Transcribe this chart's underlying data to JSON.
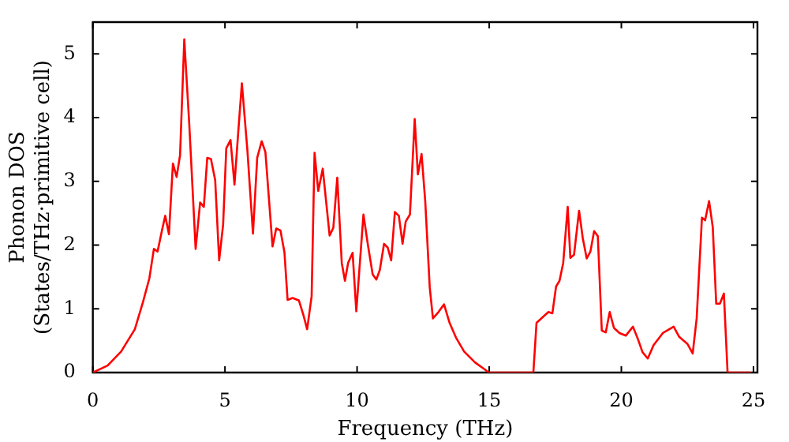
{
  "chart_data": {
    "type": "line",
    "xlabel": "Frequency (THz)",
    "ylabel": "Phonon DOS\n(States/THz·primitive cell)",
    "xlim": [
      0,
      25.15
    ],
    "ylim": [
      0,
      5.5
    ],
    "xticks": [
      0,
      5,
      10,
      15,
      20,
      25
    ],
    "yticks": [
      0,
      1,
      2,
      3,
      4,
      5
    ],
    "grid": false,
    "legend": false,
    "marker": "none",
    "line_style": "solid",
    "series": [
      {
        "color": "#ff0000",
        "x": [
          0,
          0.56,
          1.07,
          1.59,
          1.9,
          2.14,
          2.31,
          2.45,
          2.62,
          2.74,
          2.88,
          3.03,
          3.17,
          3.3,
          3.46,
          3.65,
          3.89,
          4.06,
          4.2,
          4.33,
          4.47,
          4.63,
          4.78,
          4.93,
          5.05,
          5.21,
          5.36,
          5.5,
          5.64,
          5.85,
          6.06,
          6.22,
          6.39,
          6.53,
          6.8,
          6.94,
          7.1,
          7.25,
          7.37,
          7.56,
          7.8,
          7.97,
          8.11,
          8.28,
          8.39,
          8.53,
          8.7,
          8.96,
          9.1,
          9.25,
          9.42,
          9.54,
          9.66,
          9.83,
          9.97,
          10.24,
          10.41,
          10.59,
          10.73,
          10.86,
          11.02,
          11.16,
          11.29,
          11.43,
          11.58,
          11.72,
          11.84,
          12.0,
          12.18,
          12.3,
          12.44,
          12.58,
          12.75,
          12.87,
          13.08,
          13.29,
          13.5,
          13.74,
          14.05,
          14.46,
          14.83,
          14.98,
          16.67,
          16.79,
          17.24,
          17.39,
          17.53,
          17.66,
          17.8,
          17.97,
          18.07,
          18.21,
          18.4,
          18.54,
          18.69,
          18.83,
          18.97,
          19.11,
          19.26,
          19.41,
          19.56,
          19.72,
          19.93,
          20.17,
          20.44,
          20.64,
          20.8,
          21.0,
          21.22,
          21.57,
          21.98,
          22.19,
          22.5,
          22.7,
          22.85,
          23.05,
          23.17,
          23.32,
          23.46,
          23.59,
          23.73,
          23.88,
          24.02,
          24.9
        ],
        "values": [
          0,
          0.11,
          0.33,
          0.68,
          1.11,
          1.48,
          1.94,
          1.9,
          2.24,
          2.46,
          2.17,
          3.28,
          3.07,
          3.41,
          5.23,
          3.89,
          1.94,
          2.67,
          2.6,
          3.37,
          3.35,
          3.02,
          1.76,
          2.32,
          3.52,
          3.65,
          2.95,
          3.76,
          4.54,
          3.48,
          2.18,
          3.37,
          3.63,
          3.46,
          1.98,
          2.26,
          2.23,
          1.89,
          1.14,
          1.17,
          1.13,
          0.9,
          0.68,
          1.2,
          3.45,
          2.85,
          3.2,
          2.15,
          2.27,
          3.06,
          1.72,
          1.44,
          1.72,
          1.88,
          0.96,
          2.48,
          2.0,
          1.54,
          1.46,
          1.61,
          2.02,
          1.96,
          1.76,
          2.52,
          2.46,
          2.02,
          2.37,
          2.48,
          3.98,
          3.11,
          3.43,
          2.68,
          1.33,
          0.85,
          0.95,
          1.07,
          0.78,
          0.55,
          0.33,
          0.16,
          0.05,
          0,
          0,
          0.78,
          0.95,
          0.93,
          1.35,
          1.44,
          1.72,
          2.6,
          1.8,
          1.85,
          2.54,
          2.11,
          1.79,
          1.9,
          2.22,
          2.14,
          0.66,
          0.63,
          0.95,
          0.7,
          0.62,
          0.58,
          0.72,
          0.51,
          0.32,
          0.22,
          0.43,
          0.62,
          0.72,
          0.56,
          0.45,
          0.3,
          0.85,
          2.43,
          2.39,
          2.69,
          2.28,
          1.08,
          1.08,
          1.24,
          0,
          0
        ]
      }
    ]
  }
}
